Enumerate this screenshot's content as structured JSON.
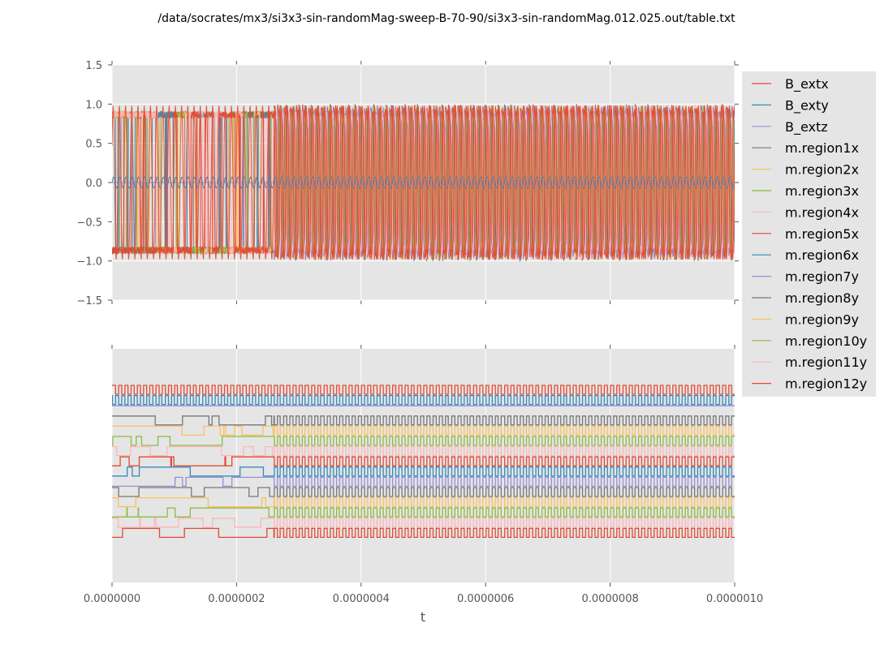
{
  "title": "/data/socrates/mx3/si3x3-sin-randomMag-sweep-B-70-90/si3x3-sin-randomMag.012.025.out/table.txt",
  "colors": {
    "axes_bg": "#E5E5E5",
    "grid": "#FFFFFF",
    "legend_bg": "#E5E5E5",
    "palette": [
      "#E24A33",
      "#348ABD",
      "#988ED5",
      "#777777",
      "#FBC15E",
      "#8EBA42",
      "#FFB5B8"
    ]
  },
  "chart_data": [
    {
      "type": "line",
      "panel": "top",
      "title": "",
      "xlabel": "",
      "ylabel": "",
      "xlim": [
        0,
        1e-06
      ],
      "ylim": [
        -1.5,
        1.5
      ],
      "yticks": [
        "1.5",
        "1.0",
        "0.5",
        "0.0",
        "−0.5",
        "−1.0",
        "−1.5"
      ],
      "grid": true,
      "series": [
        {
          "name": "B_extx",
          "color": "#E24A33",
          "description": "sinusoid amplitude ~1"
        },
        {
          "name": "B_exty",
          "color": "#348ABD",
          "description": "small sinusoid amplitude ~0.07"
        },
        {
          "name": "B_extz",
          "color": "#988ED5",
          "description": "flat"
        },
        {
          "name": "m.region1x",
          "color": "#777777"
        },
        {
          "name": "m.region2x",
          "color": "#FBC15E"
        },
        {
          "name": "m.region3x",
          "color": "#8EBA42"
        },
        {
          "name": "m.region4x",
          "color": "#FFB5B8"
        },
        {
          "name": "m.region5x",
          "color": "#E24A33"
        },
        {
          "name": "m.region6x",
          "color": "#348ABD"
        },
        {
          "name": "m.region7y",
          "color": "#988ED5"
        },
        {
          "name": "m.region8y",
          "color": "#777777"
        },
        {
          "name": "m.region9y",
          "color": "#FBC15E"
        },
        {
          "name": "m.region10y",
          "color": "#8EBA42"
        },
        {
          "name": "m.region11y",
          "color": "#FFB5B8"
        },
        {
          "name": "m.region12y",
          "color": "#E24A33"
        }
      ],
      "regime_change_t": 2.6e-07
    },
    {
      "type": "line",
      "panel": "bottom",
      "title": "",
      "xlabel": "t",
      "ylabel": "",
      "xlim": [
        0,
        1e-06
      ],
      "xticks": [
        "0.0000000",
        "0.0000002",
        "0.0000004",
        "0.0000006",
        "0.0000008",
        "0.0000010"
      ],
      "grid": true,
      "description": "stacked square-wave traces, one per series, offset vertically"
    }
  ],
  "legend": {
    "placement": "right",
    "items": [
      {
        "label": "B_extx",
        "color": "#E24A33"
      },
      {
        "label": "B_exty",
        "color": "#348ABD"
      },
      {
        "label": "B_extz",
        "color": "#988ED5"
      },
      {
        "label": "m.region1x",
        "color": "#777777"
      },
      {
        "label": "m.region2x",
        "color": "#FBC15E"
      },
      {
        "label": "m.region3x",
        "color": "#8EBA42"
      },
      {
        "label": "m.region4x",
        "color": "#FFB5B8"
      },
      {
        "label": "m.region5x",
        "color": "#E24A33"
      },
      {
        "label": "m.region6x",
        "color": "#348ABD"
      },
      {
        "label": "m.region7y",
        "color": "#988ED5"
      },
      {
        "label": "m.region8y",
        "color": "#777777"
      },
      {
        "label": "m.region9y",
        "color": "#FBC15E"
      },
      {
        "label": "m.region10y",
        "color": "#8EBA42"
      },
      {
        "label": "m.region11y",
        "color": "#FFB5B8"
      },
      {
        "label": "m.region12y",
        "color": "#E24A33"
      }
    ]
  }
}
